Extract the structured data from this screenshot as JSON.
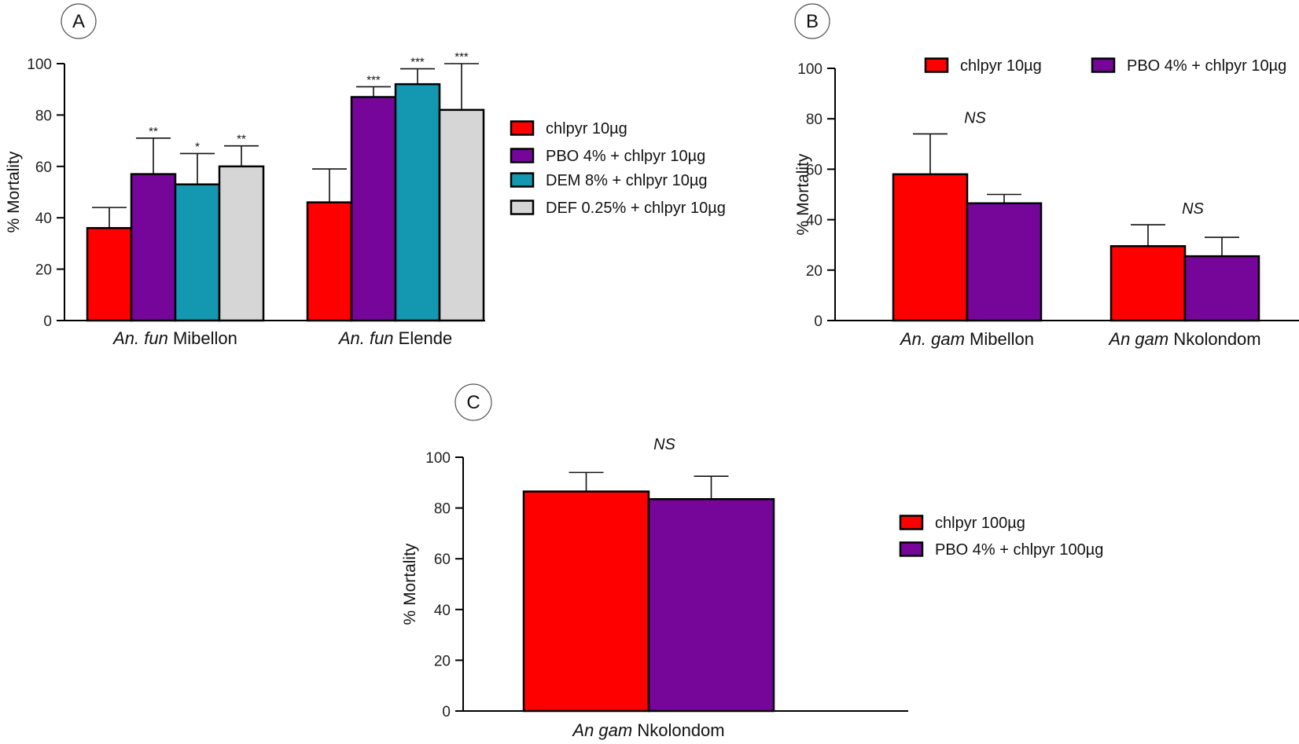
{
  "figure": {
    "colors": {
      "chlpyr": "#FF0000",
      "pbo": "#76069A",
      "dem": "#1497B1",
      "def": "#D6D6D6",
      "axis": "#000000"
    }
  },
  "chart_data": [
    {
      "panel": "A",
      "type": "bar",
      "ylabel": "% Mortality",
      "ylim": [
        0,
        100
      ],
      "yticks": [
        "0",
        "20",
        "40",
        "60",
        "80",
        "100"
      ],
      "groups": [
        {
          "prefix": "An. fun",
          "suffix": " Mibellon"
        },
        {
          "prefix": "An. fun",
          "suffix": " Elende"
        }
      ],
      "series": [
        {
          "name": "chlpyr 10µg",
          "color": "#FF0000",
          "values": [
            36,
            46
          ],
          "errors": [
            8,
            13
          ],
          "sig": [
            "",
            ""
          ]
        },
        {
          "name": "PBO 4% + chlpyr 10µg",
          "color": "#76069A",
          "values": [
            57,
            87
          ],
          "errors": [
            14,
            4
          ],
          "sig": [
            "**",
            "***"
          ]
        },
        {
          "name": "DEM 8% + chlpyr 10µg",
          "color": "#1497B1",
          "values": [
            53,
            92
          ],
          "errors": [
            12,
            6
          ],
          "sig": [
            "*",
            "***"
          ]
        },
        {
          "name": "DEF 0.25% + chlpyr 10µg",
          "color": "#D6D6D6",
          "values": [
            60,
            82
          ],
          "errors": [
            8,
            18
          ],
          "sig": [
            "**",
            "***"
          ]
        }
      ]
    },
    {
      "panel": "B",
      "type": "bar",
      "ylabel": "% Mortality",
      "ylim": [
        0,
        100
      ],
      "yticks": [
        "0",
        "20",
        "40",
        "60",
        "80",
        "100"
      ],
      "groups": [
        {
          "prefix": "An. gam",
          "suffix": " Mibellon",
          "sig": "NS"
        },
        {
          "prefix": "An gam",
          "suffix": " Nkolondom",
          "sig": "NS"
        }
      ],
      "series": [
        {
          "name": "chlpyr 10µg",
          "color": "#FF0000",
          "values": [
            58,
            29.5
          ],
          "errors": [
            16,
            8.5
          ]
        },
        {
          "name": "PBO 4% + chlpyr 10µg",
          "color": "#76069A",
          "values": [
            46.5,
            25.5
          ],
          "errors": [
            3.5,
            7.5
          ]
        }
      ]
    },
    {
      "panel": "C",
      "type": "bar",
      "ylabel": "% Mortality",
      "ylim": [
        0,
        100
      ],
      "yticks": [
        "0",
        "20",
        "40",
        "60",
        "80",
        "100"
      ],
      "groups": [
        {
          "prefix": "An gam",
          "suffix": " Nkolondom",
          "sig": "NS"
        }
      ],
      "series": [
        {
          "name": "chlpyr 100µg",
          "color": "#FF0000",
          "values": [
            86.5
          ],
          "errors": [
            7.5
          ]
        },
        {
          "name": "PBO 4% + chlpyr 100µg",
          "color": "#76069A",
          "values": [
            83.5
          ],
          "errors": [
            9
          ]
        }
      ]
    }
  ]
}
